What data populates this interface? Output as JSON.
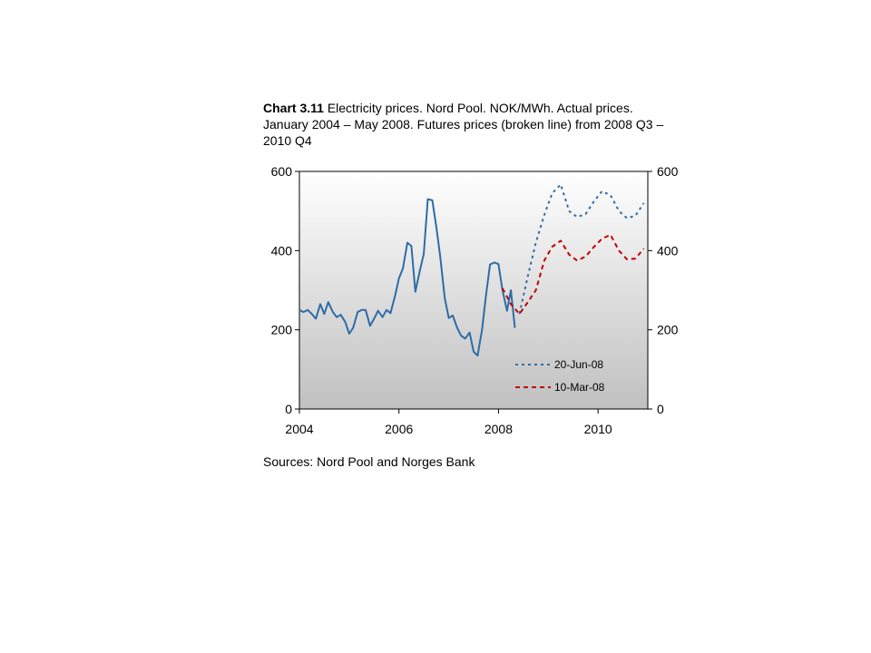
{
  "title": {
    "prefix": "Chart 3.11",
    "text": " Electricity prices. Nord Pool. NOK/MWh. Actual prices. January 2004 – May 2008. Futures prices (broken line) from 2008 Q3 – 2010 Q4"
  },
  "source": "Sources: Nord Pool and Norges Bank",
  "chart_data": {
    "type": "line",
    "title": "Chart 3.11 Electricity prices. Nord Pool. NOK/MWh. Actual prices. January 2004 – May 2008. Futures prices (broken line) from 2008 Q3 – 2010 Q4",
    "xlabel": "",
    "ylabel": "",
    "xlim": [
      2004,
      2011.0
    ],
    "ylim": [
      0,
      600
    ],
    "x_ticks": [
      2004,
      2006,
      2008,
      2010
    ],
    "y_ticks": [
      0,
      200,
      400,
      600
    ],
    "y_ticks_right": [
      0,
      200,
      400,
      600
    ],
    "background": "gradient light gray to gray",
    "grid": false,
    "legend_position": "bottom-right inside plot",
    "series": [
      {
        "name": "",
        "style": "solid",
        "color": "#2e6ca6",
        "x": [
          2004.0,
          2004.08,
          2004.17,
          2004.25,
          2004.33,
          2004.42,
          2004.5,
          2004.58,
          2004.67,
          2004.75,
          2004.83,
          2004.92,
          2005.0,
          2005.08,
          2005.17,
          2005.25,
          2005.33,
          2005.42,
          2005.5,
          2005.58,
          2005.67,
          2005.75,
          2005.83,
          2005.92,
          2006.0,
          2006.08,
          2006.17,
          2006.25,
          2006.33,
          2006.42,
          2006.5,
          2006.58,
          2006.67,
          2006.75,
          2006.83,
          2006.92,
          2007.0,
          2007.08,
          2007.17,
          2007.25,
          2007.33,
          2007.42,
          2007.5,
          2007.58,
          2007.67,
          2007.75,
          2007.83,
          2007.92,
          2008.0,
          2008.08,
          2008.17,
          2008.25,
          2008.33
        ],
        "values": [
          250,
          245,
          250,
          240,
          228,
          265,
          240,
          270,
          245,
          232,
          238,
          220,
          190,
          205,
          245,
          250,
          250,
          210,
          228,
          248,
          232,
          250,
          242,
          285,
          330,
          355,
          420,
          412,
          296,
          350,
          392,
          530,
          527,
          460,
          385,
          280,
          230,
          236,
          205,
          185,
          178,
          193,
          145,
          135,
          200,
          288,
          365,
          370,
          366,
          300,
          248,
          300,
          205
        ]
      },
      {
        "name": "20-Jun-08",
        "style": "dotted",
        "color": "#2e6ca6",
        "x": [
          2008.42,
          2008.58,
          2008.75,
          2008.92,
          2009.08,
          2009.25,
          2009.42,
          2009.58,
          2009.75,
          2009.92,
          2010.08,
          2010.25,
          2010.42,
          2010.58,
          2010.75,
          2010.92
        ],
        "values": [
          240,
          330,
          420,
          490,
          545,
          567,
          500,
          485,
          492,
          525,
          550,
          540,
          500,
          482,
          488,
          520
        ]
      },
      {
        "name": "10-Mar-08",
        "style": "dashed",
        "color": "#c00000",
        "x": [
          2008.08,
          2008.25,
          2008.42,
          2008.58,
          2008.75,
          2008.92,
          2009.08,
          2009.25,
          2009.42,
          2009.58,
          2009.75,
          2009.92,
          2010.08,
          2010.25,
          2010.42,
          2010.58,
          2010.75,
          2010.92
        ],
        "values": [
          305,
          265,
          240,
          268,
          300,
          375,
          410,
          425,
          390,
          375,
          385,
          410,
          430,
          440,
          400,
          378,
          380,
          405
        ]
      }
    ]
  },
  "colors": {
    "plot_bg_top": "#ffffff",
    "plot_bg_bottom": "#c0c0c0",
    "actual_line": "#2e6ca6",
    "futures_jun": "#2e6ca6",
    "futures_mar": "#c00000"
  }
}
